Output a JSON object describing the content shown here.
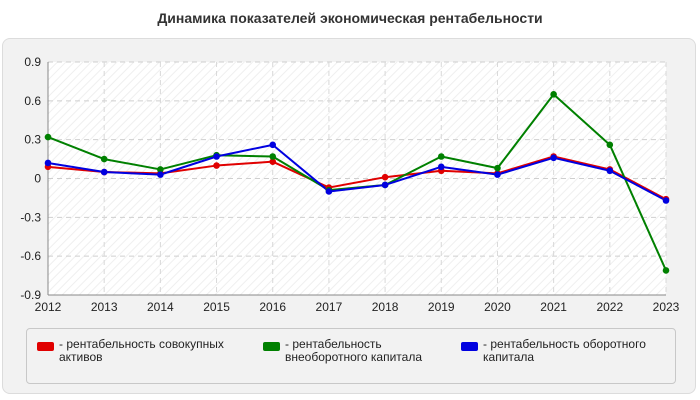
{
  "chart_data": {
    "type": "line",
    "title": "Динамика показателей экономическая рентабельности",
    "xlabel": "",
    "ylabel": "",
    "categories": [
      "2012",
      "2013",
      "2014",
      "2015",
      "2016",
      "2017",
      "2018",
      "2019",
      "2020",
      "2021",
      "2022",
      "2023"
    ],
    "ylim": [
      -0.9,
      0.9
    ],
    "yticks": [
      "0.9",
      "0.6",
      "0.3",
      "0",
      "-0.3",
      "-0.6",
      "-0.9"
    ],
    "grid": true,
    "legend_position": "bottom",
    "series": [
      {
        "name": "рентабельность совокупных активов",
        "color": "#e00000",
        "values": [
          0.09,
          0.05,
          0.04,
          0.1,
          0.13,
          -0.07,
          0.01,
          0.06,
          0.04,
          0.17,
          0.07,
          -0.16
        ]
      },
      {
        "name": "рентабельность внеоборотного капитала",
        "color": "#008000",
        "values": [
          0.32,
          0.15,
          0.07,
          0.18,
          0.17,
          -0.09,
          -0.05,
          0.17,
          0.08,
          0.65,
          0.26,
          -0.71
        ]
      },
      {
        "name": "рентабельность оборотного капитала",
        "color": "#0000e0",
        "values": [
          0.12,
          0.05,
          0.03,
          0.17,
          0.26,
          -0.1,
          -0.05,
          0.09,
          0.03,
          0.16,
          0.06,
          -0.17
        ]
      }
    ]
  },
  "legend": {
    "items": [
      {
        "label_line1": "рентабельность совокупных",
        "label_line2": "активов",
        "color": "#e00000"
      },
      {
        "label_line1": "рентабельность",
        "label_line2": "внеоборотного капитала",
        "color": "#008000"
      },
      {
        "label_line1": "рентабельность оборотного",
        "label_line2": "капитала",
        "color": "#0000e0"
      }
    ]
  }
}
